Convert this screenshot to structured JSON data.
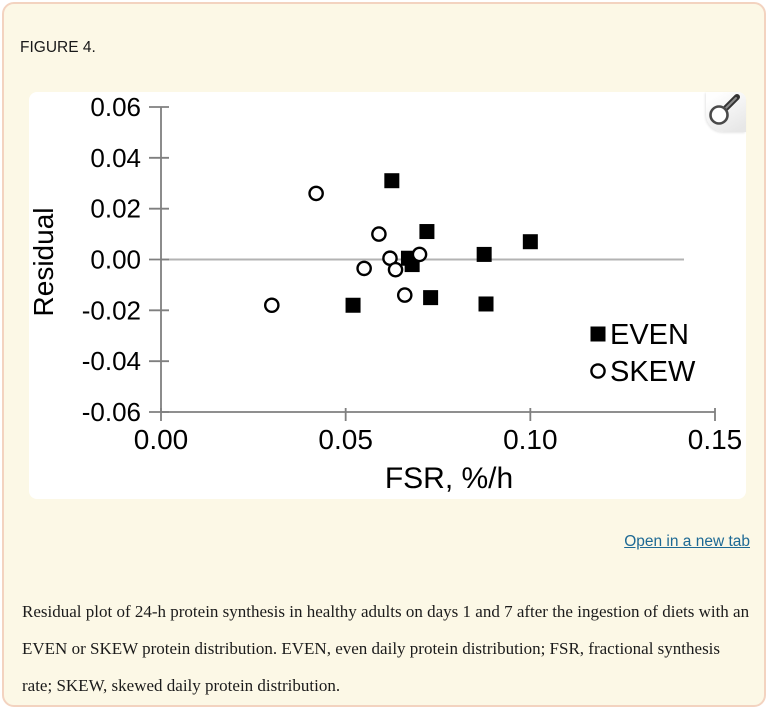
{
  "figure": {
    "label": "FIGURE 4."
  },
  "links": {
    "open_in_new_tab": "Open in a new tab"
  },
  "caption": {
    "text": "Residual plot of 24-h protein synthesis in healthy adults on days 1 and 7 after the ingestion of diets with an EVEN or SKEW protein distribution. EVEN, even daily protein distribution; FSR, fractional synthesis rate; SKEW, skewed daily protein distribution."
  },
  "colors": {
    "card_bg": "#fcf8e6",
    "card_border": "#f3d3c0",
    "panel_bg": "#ffffff",
    "link": "#1d6994",
    "axis": "#7f7f7f",
    "zero_line": "#b3b3b3",
    "marker": "#000000",
    "text": "#1a1a1a"
  },
  "chart_data": {
    "type": "scatter",
    "title": "",
    "xlabel": "FSR, %/h",
    "ylabel": "Residual",
    "xlim": [
      0,
      0.15
    ],
    "ylim": [
      -0.06,
      0.06
    ],
    "xticks": [
      0,
      0.05,
      0.1,
      0.15
    ],
    "xtick_labels": [
      "0.00",
      "0.05",
      "0.10",
      "0.15"
    ],
    "yticks": [
      0.06,
      0.04,
      0.02,
      0,
      -0.02,
      -0.04,
      -0.06
    ],
    "ytick_labels": [
      "0.06",
      "0.04",
      "0.02",
      "0.00",
      "-0.02",
      "-0.04",
      "-0.06"
    ],
    "grid": false,
    "zero_line": true,
    "legend": {
      "position": "inside-bottom-right",
      "entries": [
        {
          "label": "EVEN",
          "marker": "filled-square"
        },
        {
          "label": "SKEW",
          "marker": "open-circle"
        }
      ]
    },
    "series": [
      {
        "name": "EVEN",
        "marker": "filled-square",
        "points": [
          [
            0.0625,
            0.031
          ],
          [
            0.072,
            0.011
          ],
          [
            0.067,
            0.0005
          ],
          [
            0.068,
            -0.002
          ],
          [
            0.073,
            -0.015
          ],
          [
            0.0875,
            0.002
          ],
          [
            0.088,
            -0.0175
          ],
          [
            0.052,
            -0.018
          ],
          [
            0.1,
            0.007
          ]
        ]
      },
      {
        "name": "SKEW",
        "marker": "open-circle",
        "points": [
          [
            0.042,
            0.026
          ],
          [
            0.059,
            0.01
          ],
          [
            0.062,
            0.0005
          ],
          [
            0.07,
            0.002
          ],
          [
            0.0635,
            -0.004
          ],
          [
            0.055,
            -0.0035
          ],
          [
            0.066,
            -0.014
          ],
          [
            0.03,
            -0.018
          ]
        ]
      }
    ]
  }
}
